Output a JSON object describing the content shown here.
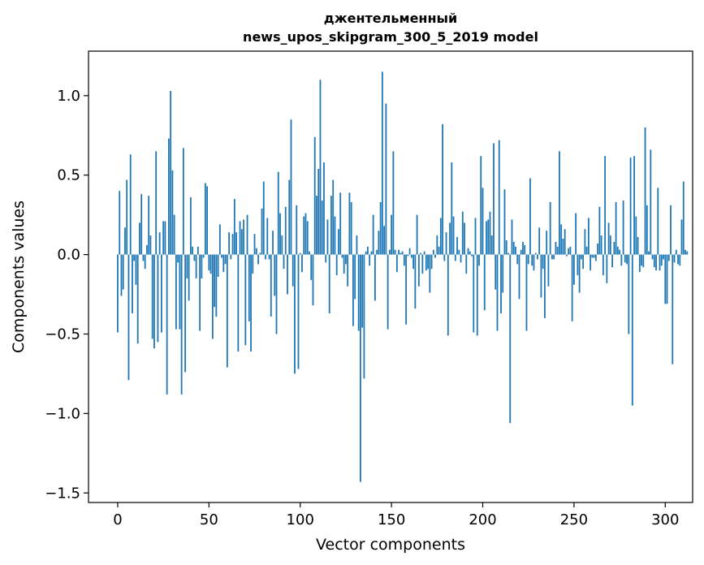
{
  "chart_data": {
    "type": "bar",
    "title_line1": "джентельменный",
    "title_line2": "news_upos_skipgram_300_5_2019 model",
    "xlabel": "Vector components",
    "ylabel": "Components values",
    "xlim": [
      -16,
      315
    ],
    "ylim": [
      -1.56,
      1.28
    ],
    "xticks": [
      0,
      50,
      100,
      150,
      200,
      250,
      300
    ],
    "xtick_labels": [
      "0",
      "50",
      "100",
      "150",
      "200",
      "250",
      "300"
    ],
    "yticks": [
      -1.5,
      -1.0,
      -0.5,
      0.0,
      0.5,
      1.0
    ],
    "ytick_labels": [
      "−1.5",
      "−1.0",
      "−0.5",
      "0.0",
      "0.5",
      "1.0"
    ],
    "bar_color": "#1f77b4",
    "grid": false,
    "values": [
      -0.49,
      0.4,
      -0.26,
      -0.22,
      0.17,
      0.47,
      -0.79,
      0.63,
      -0.37,
      -0.04,
      -0.19,
      -0.56,
      0.2,
      0.38,
      -0.04,
      -0.09,
      0.06,
      0.37,
      0.12,
      -0.53,
      -0.59,
      0.65,
      -0.55,
      0.14,
      -0.49,
      0.21,
      0.21,
      -0.88,
      0.73,
      1.03,
      0.53,
      0.25,
      -0.47,
      -0.05,
      -0.47,
      -0.88,
      0.67,
      -0.74,
      -0.15,
      -0.29,
      0.36,
      0.05,
      -0.04,
      -0.15,
      0.05,
      -0.48,
      -0.15,
      -0.02,
      0.45,
      0.43,
      -0.1,
      -0.12,
      -0.53,
      -0.33,
      -0.39,
      -0.14,
      0.19,
      -0.02,
      -0.11,
      -0.06,
      -0.71,
      0.14,
      -0.03,
      0.13,
      0.35,
      0.14,
      -0.61,
      0.21,
      0.16,
      0.22,
      -0.57,
      0.25,
      -0.42,
      -0.61,
      -0.12,
      0.13,
      0.04,
      -0.06,
      0.01,
      0.29,
      0.46,
      -0.03,
      0.23,
      -0.03,
      -0.39,
      0.15,
      -0.26,
      -0.5,
      0.52,
      0.26,
      0.12,
      -0.09,
      0.3,
      -0.25,
      0.47,
      0.85,
      -0.2,
      -0.75,
      0.31,
      -0.72,
      0.01,
      -0.11,
      0.24,
      0.26,
      0.21,
      0.02,
      -0.16,
      -0.32,
      0.74,
      0.37,
      0.54,
      1.1,
      0.34,
      0.58,
      -0.05,
      0.22,
      -0.37,
      0.37,
      0.47,
      0.24,
      -0.13,
      0.16,
      0.39,
      -0.02,
      -0.12,
      -0.06,
      -0.2,
      0.39,
      0.33,
      -0.45,
      -0.28,
      0.12,
      -0.48,
      -1.43,
      -0.46,
      -0.78,
      0.02,
      0.05,
      -0.07,
      0.02,
      0.25,
      -0.29,
      0.03,
      0.15,
      0.33,
      1.15,
      0.18,
      0.95,
      -0.47,
      0.03,
      0.25,
      0.65,
      0.03,
      -0.11,
      0.03,
      0.01,
      0.02,
      -0.07,
      -0.44,
      -0.01,
      0.04,
      -0.02,
      -0.09,
      -0.34,
      0.25,
      -0.2,
      0.01,
      -0.12,
      0.02,
      -0.1,
      -0.09,
      -0.24,
      -0.09,
      0.03,
      -0.02,
      0.12,
      0.05,
      0.23,
      0.82,
      -0.04,
      0.14,
      -0.51,
      0.2,
      0.58,
      0.24,
      -0.04,
      0.11,
      0.03,
      -0.05,
      0.27,
      0.2,
      -0.12,
      0.04,
      0.02,
      -0.01,
      -0.49,
      0.23,
      -0.51,
      -0.07,
      0.62,
      0.42,
      -0.35,
      0.21,
      0.22,
      0.27,
      0.12,
      0.7,
      -0.22,
      -0.48,
      0.72,
      -0.37,
      -0.24,
      0.41,
      0.09,
      0.01,
      -1.06,
      0.22,
      0.08,
      0.05,
      -0.06,
      -0.28,
      0.03,
      0.08,
      0.06,
      -0.48,
      -0.06,
      0.48,
      -0.07,
      -0.1,
      0.01,
      -0.03,
      0.17,
      -0.27,
      -0.09,
      -0.4,
      0.15,
      -0.2,
      0.33,
      -0.03,
      -0.03,
      0.08,
      0.05,
      0.65,
      0.19,
      0.1,
      0.16,
      -0.01,
      0.04,
      0.05,
      -0.42,
      -0.19,
      0.26,
      -0.13,
      -0.24,
      -0.03,
      -0.09,
      0.16,
      0.05,
      0.23,
      -0.1,
      -0.02,
      -0.02,
      -0.04,
      0.07,
      0.3,
      0.12,
      -0.13,
      0.62,
      -0.18,
      0.2,
      0.12,
      -0.08,
      0.08,
      0.33,
      0.05,
      0.03,
      -0.07,
      0.34,
      -0.05,
      -0.06,
      -0.5,
      0.61,
      -0.95,
      0.62,
      0.24,
      0.11,
      -0.11,
      -0.07,
      -0.08,
      0.8,
      0.31,
      0.02,
      0.66,
      -0.03,
      -0.08,
      -0.1,
      0.42,
      -0.1,
      -0.07,
      -0.03,
      -0.31,
      -0.31,
      -0.04,
      0.31,
      -0.69,
      -0.05,
      0.03,
      -0.06,
      -0.07,
      0.22,
      0.46,
      0.03,
      0.02
    ]
  }
}
